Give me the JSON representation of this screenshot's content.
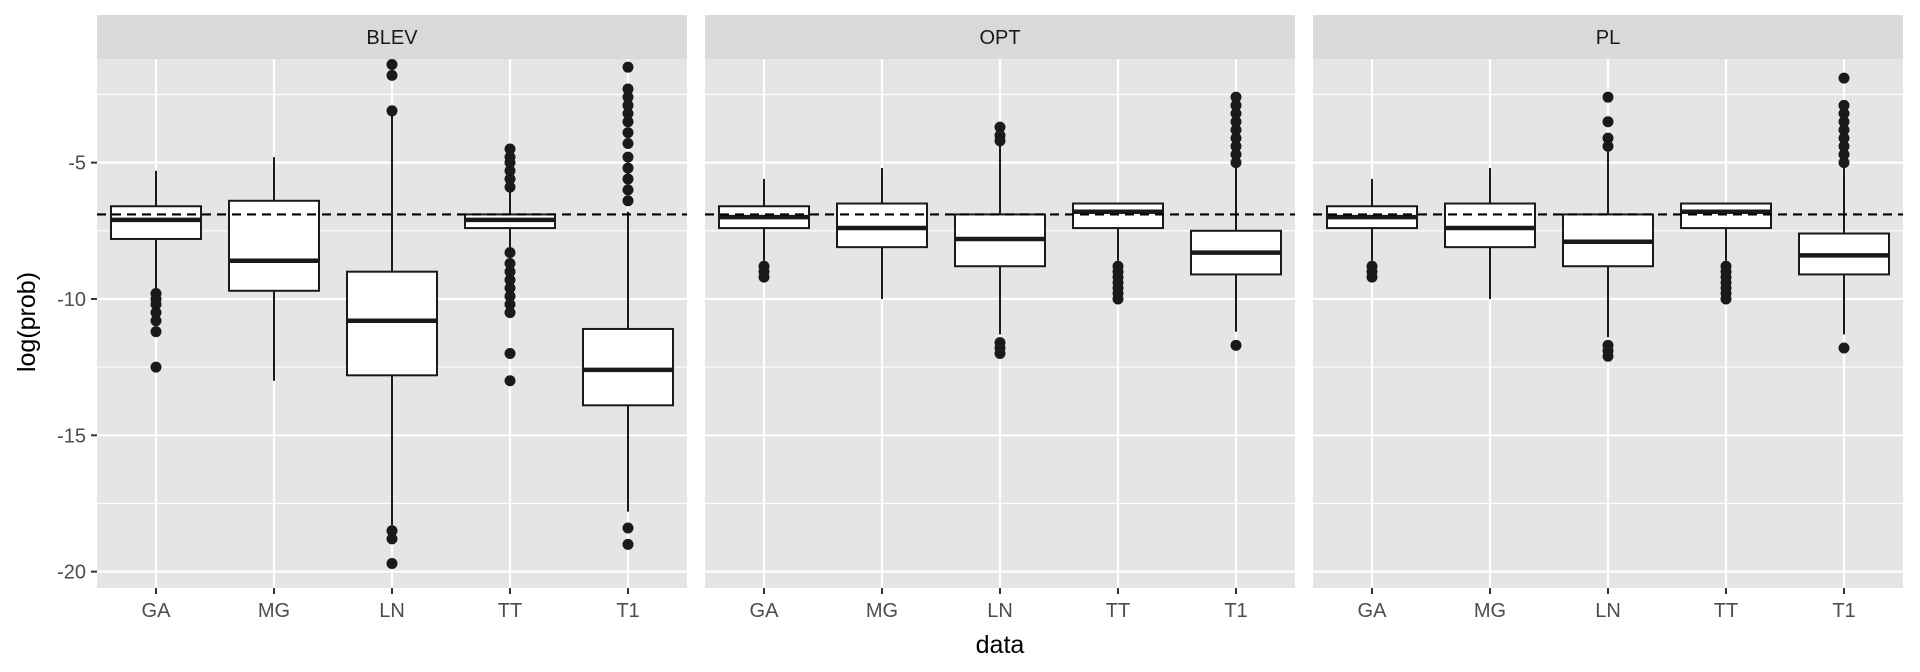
{
  "chart_data": {
    "type": "boxplot",
    "xlabel": "data",
    "ylabel": "log(prob)",
    "ylim": [
      -20.6,
      -1.2
    ],
    "yticks": [
      -5,
      -10,
      -15,
      -20
    ],
    "categories": [
      "GA",
      "MG",
      "LN",
      "TT",
      "T1"
    ],
    "reference_line": {
      "y": -6.9,
      "style": "dashed"
    },
    "grid": true,
    "colors": {
      "panel_bg": "#e5e5e5",
      "strip_bg": "#d9d9d9",
      "grid": "#ffffff",
      "box_fill": "#ffffff",
      "stroke": "#1a1a1a"
    },
    "panels": [
      {
        "label": "BLEV",
        "boxes": [
          {
            "category": "GA",
            "whisker_low": -9.7,
            "q1": -7.8,
            "median": -7.1,
            "q3": -6.6,
            "whisker_high": -5.3,
            "outliers": [
              -9.8,
              -10.0,
              -10.2,
              -10.5,
              -10.8,
              -11.2,
              -12.5
            ]
          },
          {
            "category": "MG",
            "whisker_low": -13.0,
            "q1": -9.7,
            "median": -8.6,
            "q3": -6.4,
            "whisker_high": -4.8,
            "outliers": []
          },
          {
            "category": "LN",
            "whisker_low": -18.3,
            "q1": -12.8,
            "median": -10.8,
            "q3": -9.0,
            "whisker_high": -3.2,
            "outliers": [
              -1.4,
              -1.8,
              -3.1,
              -18.5,
              -18.8,
              -19.7
            ]
          },
          {
            "category": "TT",
            "whisker_low": -8.2,
            "q1": -7.4,
            "median": -7.1,
            "q3": -6.9,
            "whisker_high": -6.0,
            "outliers": [
              -4.5,
              -4.8,
              -5.0,
              -5.3,
              -5.6,
              -5.9,
              -8.3,
              -8.7,
              -9.0,
              -9.3,
              -9.6,
              -9.9,
              -10.2,
              -10.5,
              -12.0,
              -13.0
            ]
          },
          {
            "category": "T1",
            "whisker_low": -17.8,
            "q1": -13.9,
            "median": -12.6,
            "q3": -11.1,
            "whisker_high": -6.8,
            "outliers": [
              -1.5,
              -2.3,
              -2.6,
              -2.9,
              -3.2,
              -3.5,
              -3.9,
              -4.3,
              -4.8,
              -5.2,
              -5.6,
              -6.0,
              -6.4,
              -18.4,
              -19.0
            ]
          }
        ]
      },
      {
        "label": "OPT",
        "boxes": [
          {
            "category": "GA",
            "whisker_low": -8.6,
            "q1": -7.4,
            "median": -7.0,
            "q3": -6.6,
            "whisker_high": -5.6,
            "outliers": [
              -8.8,
              -9.0,
              -9.2
            ]
          },
          {
            "category": "MG",
            "whisker_low": -10.0,
            "q1": -8.1,
            "median": -7.4,
            "q3": -6.5,
            "whisker_high": -5.2,
            "outliers": []
          },
          {
            "category": "LN",
            "whisker_low": -11.3,
            "q1": -8.8,
            "median": -7.8,
            "q3": -6.9,
            "whisker_high": -4.3,
            "outliers": [
              -3.7,
              -4.0,
              -4.2,
              -11.6,
              -11.8,
              -12.0
            ]
          },
          {
            "category": "TT",
            "whisker_low": -8.6,
            "q1": -7.4,
            "median": -6.8,
            "q3": -6.5,
            "whisker_high": -6.5,
            "outliers": [
              -8.8,
              -9.0,
              -9.2,
              -9.4,
              -9.6,
              -9.8,
              -10.0
            ]
          },
          {
            "category": "T1",
            "whisker_low": -11.2,
            "q1": -9.1,
            "median": -8.3,
            "q3": -7.5,
            "whisker_high": -5.1,
            "outliers": [
              -2.6,
              -2.9,
              -3.2,
              -3.5,
              -3.8,
              -4.1,
              -4.4,
              -4.7,
              -5.0,
              -11.7
            ]
          }
        ]
      },
      {
        "label": "PL",
        "boxes": [
          {
            "category": "GA",
            "whisker_low": -8.6,
            "q1": -7.4,
            "median": -7.0,
            "q3": -6.6,
            "whisker_high": -5.6,
            "outliers": [
              -8.8,
              -9.0,
              -9.2
            ]
          },
          {
            "category": "MG",
            "whisker_low": -10.0,
            "q1": -8.1,
            "median": -7.4,
            "q3": -6.5,
            "whisker_high": -5.2,
            "outliers": []
          },
          {
            "category": "LN",
            "whisker_low": -11.4,
            "q1": -8.8,
            "median": -7.9,
            "q3": -6.9,
            "whisker_high": -4.5,
            "outliers": [
              -2.6,
              -3.5,
              -4.1,
              -4.4,
              -11.7,
              -11.9,
              -12.1
            ]
          },
          {
            "category": "TT",
            "whisker_low": -8.6,
            "q1": -7.4,
            "median": -6.8,
            "q3": -6.5,
            "whisker_high": -6.5,
            "outliers": [
              -8.8,
              -9.0,
              -9.2,
              -9.4,
              -9.6,
              -9.8,
              -10.0
            ]
          },
          {
            "category": "T1",
            "whisker_low": -11.3,
            "q1": -9.1,
            "median": -8.4,
            "q3": -7.6,
            "whisker_high": -5.2,
            "outliers": [
              -1.9,
              -2.9,
              -3.2,
              -3.5,
              -3.8,
              -4.1,
              -4.4,
              -4.7,
              -5.0,
              -11.8
            ]
          }
        ]
      }
    ]
  }
}
